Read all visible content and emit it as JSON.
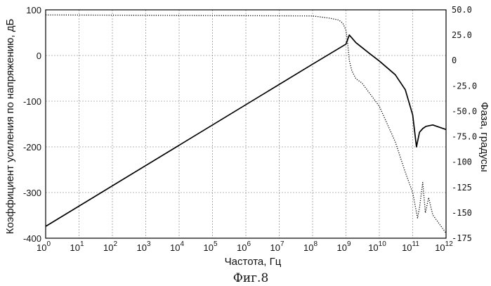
{
  "chart_data": {
    "type": "line",
    "xlabel": "Частота, Гц",
    "ylabel": "Коэффициент усиления по напряжению, дБ",
    "y2label": "Фаза, градусы",
    "caption": "Фиг.8",
    "x_scale": "log",
    "xlim": [
      1,
      1000000000000
    ],
    "ylim": [
      -400,
      100
    ],
    "y2lim": [
      -175,
      50
    ],
    "grid": true,
    "legend": "none",
    "x_ticks": [
      {
        "base": "10",
        "exp": "0"
      },
      {
        "base": "10",
        "exp": "1"
      },
      {
        "base": "10",
        "exp": "2"
      },
      {
        "base": "10",
        "exp": "3"
      },
      {
        "base": "10",
        "exp": "4"
      },
      {
        "base": "10",
        "exp": "5"
      },
      {
        "base": "10",
        "exp": "6"
      },
      {
        "base": "10",
        "exp": "7"
      },
      {
        "base": "10",
        "exp": "8"
      },
      {
        "base": "10",
        "exp": "9"
      },
      {
        "base": "10",
        "exp": "10"
      },
      {
        "base": "10",
        "exp": "11"
      },
      {
        "base": "10",
        "exp": "12"
      }
    ],
    "y_ticks": [
      "100",
      "0",
      "-100",
      "-200",
      "-300",
      "-400"
    ],
    "y2_ticks": [
      "50.0",
      "25.0",
      "0",
      "-25.0",
      "-50.0",
      "-75.0",
      "-100",
      "-125",
      "-150",
      "-175"
    ],
    "series": [
      {
        "axis": "left",
        "style": "solid",
        "x": [
          1,
          100000000,
          1000000000,
          1260000000,
          2000000000,
          5000000000,
          10000000000,
          30000000000,
          60000000000,
          100000000000,
          130000000000,
          160000000000,
          200000000000,
          250000000000,
          400000000000,
          1000000000000
        ],
        "y": [
          -374,
          -19,
          25,
          45,
          28,
          5,
          -12,
          -42,
          -75,
          -130,
          -200,
          -168,
          -160,
          -155,
          -152,
          -162
        ]
      },
      {
        "axis": "right",
        "style": "dotted",
        "x": [
          1,
          100000000,
          300000000,
          600000000,
          800000000,
          1000000000,
          1100000000,
          1260000000,
          1500000000,
          2000000000,
          3000000000,
          10000000000,
          30000000000,
          60000000000,
          100000000000,
          140000000000,
          160000000000,
          200000000000,
          240000000000,
          300000000000,
          400000000000,
          600000000000,
          1000000000000
        ],
        "y": [
          45,
          44,
          42,
          40,
          37,
          30,
          20,
          0,
          -10,
          -18,
          -22,
          -45,
          -80,
          -110,
          -130,
          -155,
          -145,
          -120,
          -150,
          -135,
          -152,
          -160,
          -170
        ]
      }
    ]
  }
}
